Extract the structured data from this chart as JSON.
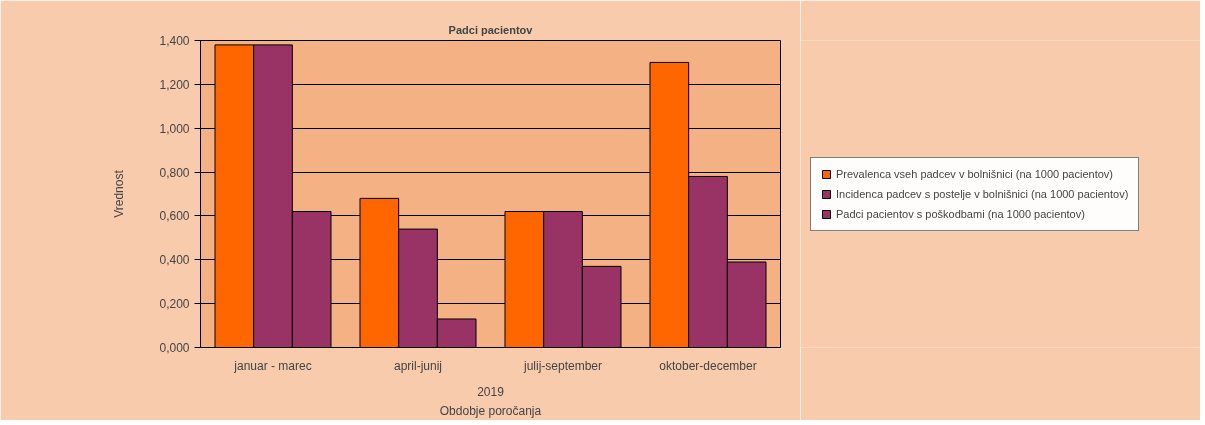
{
  "chart_data": {
    "type": "bar",
    "title": "Padci pacientov",
    "xlabel": "Obdobje poročanja",
    "ylabel": "Vrednost",
    "annotations": [
      "2019"
    ],
    "categories": [
      "januar - marec",
      "april-junij",
      "julij-september",
      "oktober-december"
    ],
    "series": [
      {
        "name": "Prevalenca vseh padcev v bolnišnici (na 1000 pacientov)",
        "color": "#ff6600",
        "values": [
          1.38,
          0.68,
          0.62,
          1.3
        ]
      },
      {
        "name": "Incidenca padcev s postelje v bolnišnici (na 1000 pacientov)",
        "color": "#993366",
        "values": [
          1.38,
          0.54,
          0.62,
          0.78
        ]
      },
      {
        "name": "Padci pacientov s poškodbami (na 1000 pacientov)",
        "color": "#993366",
        "values": [
          0.62,
          0.13,
          0.37,
          0.39
        ]
      }
    ],
    "ylim": [
      0,
      1.4
    ],
    "yticks": [
      {
        "value": 0,
        "label": "0,000"
      },
      {
        "value": 0.2,
        "label": "0,200"
      },
      {
        "value": 0.4,
        "label": "0,400"
      },
      {
        "value": 0.6,
        "label": "0,600"
      },
      {
        "value": 0.8,
        "label": "0,800"
      },
      {
        "value": 1.0,
        "label": "1,000"
      },
      {
        "value": 1.2,
        "label": "1,200"
      },
      {
        "value": 1.4,
        "label": "1,400"
      }
    ],
    "grid": "y",
    "legend": "right"
  }
}
